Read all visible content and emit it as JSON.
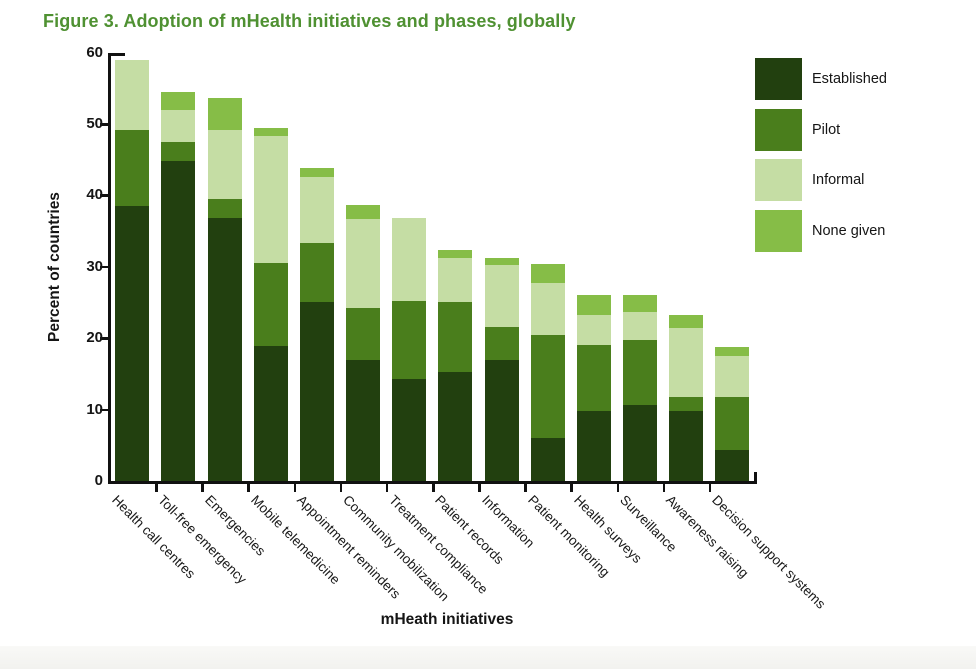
{
  "figure": {
    "title": "Figure 3. Adoption of mHealth initiatives and phases, globally",
    "title_color": "#4f9132"
  },
  "chart_data": {
    "type": "bar",
    "stacked": true,
    "title": "Figure 3. Adoption of mHealth initiatives and phases, globally",
    "xlabel": "mHeath initiatives",
    "ylabel": "Percent of countries",
    "ylim": [
      0,
      60
    ],
    "yticks": [
      0,
      10,
      20,
      30,
      40,
      50,
      60
    ],
    "grid": false,
    "legend_position": "top-right",
    "category_label_rotation_deg": 45,
    "categories": [
      "Health call centres",
      "Toll-free emergency",
      "Emergencies",
      "Mobile telemedicine",
      "Appointment reminders",
      "Community mobilization",
      "Treatment compliance",
      "Patient records",
      "Information",
      "Patient monitoring",
      "Health surveys",
      "Surveillance",
      "Awareness raising",
      "Decision support systems"
    ],
    "series": [
      {
        "name": "Established",
        "color": "#22400f",
        "values": [
          38.5,
          44.8,
          36.8,
          18.9,
          25.1,
          17.0,
          14.3,
          15.2,
          17.0,
          6.0,
          9.8,
          10.7,
          9.8,
          4.4
        ]
      },
      {
        "name": "Pilot",
        "color": "#4a7e1c",
        "values": [
          10.7,
          2.7,
          2.7,
          11.7,
          8.3,
          7.2,
          10.9,
          9.9,
          4.6,
          14.5,
          9.2,
          9.1,
          2.0,
          7.3
        ]
      },
      {
        "name": "Informal",
        "color": "#c5dda4",
        "values": [
          9.8,
          4.5,
          9.7,
          17.7,
          9.2,
          12.5,
          11.6,
          6.1,
          8.7,
          7.2,
          4.3,
          3.9,
          9.6,
          5.8
        ]
      },
      {
        "name": "None given",
        "color": "#86bd47",
        "values": [
          0,
          2.5,
          4.5,
          1.2,
          1.2,
          2.0,
          0,
          1.2,
          1.0,
          2.7,
          2.7,
          2.3,
          1.9,
          1.2
        ]
      }
    ],
    "totals": [
      59.0,
      54.5,
      53.7,
      49.5,
      43.8,
      38.7,
      36.8,
      32.4,
      31.3,
      30.4,
      26.0,
      26.0,
      23.3,
      18.7
    ]
  }
}
